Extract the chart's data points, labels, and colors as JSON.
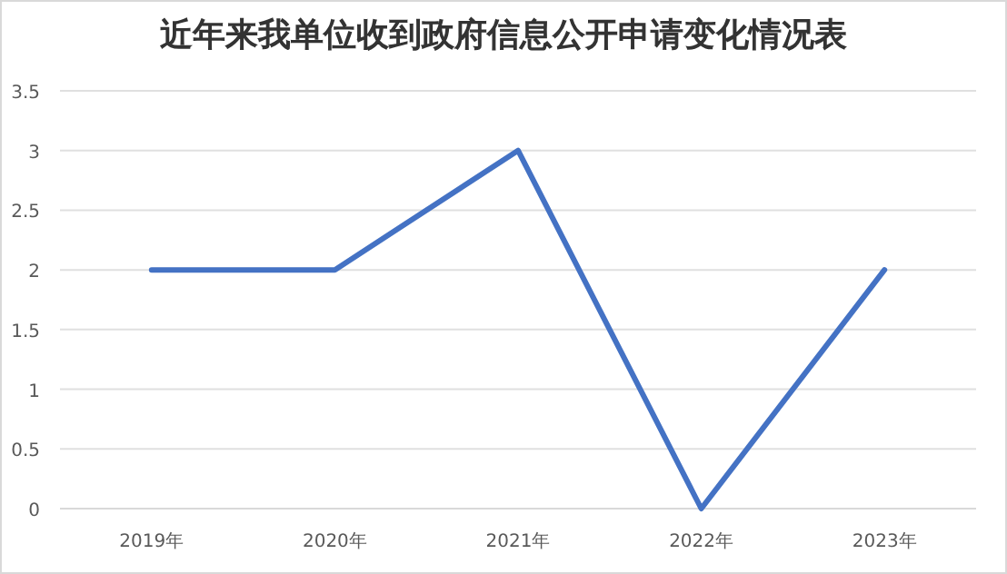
{
  "chart_data": {
    "type": "line",
    "title": "近年来我单位收到政府信息公开申请变化情况表",
    "categories": [
      "2019年",
      "2020年",
      "2021年",
      "2022年",
      "2023年"
    ],
    "series": [
      {
        "color": "#4472c4",
        "values": [
          2,
          2,
          3,
          0,
          2
        ]
      }
    ],
    "ylim": [
      0,
      3.5
    ],
    "yticks": [
      0,
      0.5,
      1,
      1.5,
      2,
      2.5,
      3,
      3.5
    ],
    "grid": "y",
    "marker": "none",
    "line_style": "solid"
  }
}
